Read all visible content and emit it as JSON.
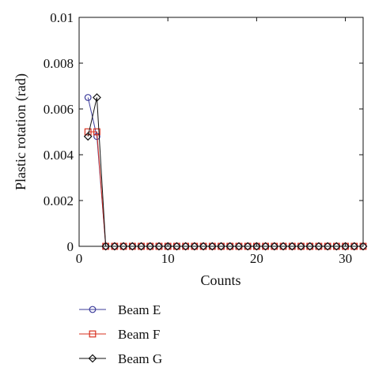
{
  "chart_data": {
    "type": "line",
    "xlabel": "Counts",
    "ylabel": "Plastic rotation (rad)",
    "xlim": [
      0,
      32
    ],
    "ylim": [
      0,
      0.01
    ],
    "xticks": [
      0,
      10,
      20,
      30
    ],
    "xtick_labels": [
      "0",
      "10",
      "20",
      "30"
    ],
    "yticks": [
      0,
      0.002,
      0.004,
      0.006,
      0.008,
      0.01
    ],
    "ytick_labels": [
      "0",
      "0.002",
      "0.004",
      "0.006",
      "0.008",
      "0.01"
    ],
    "grid": false,
    "legend_position": "bottom-left, below the plot",
    "x": [
      1,
      2,
      3,
      4,
      5,
      6,
      7,
      8,
      9,
      10,
      11,
      12,
      13,
      14,
      15,
      16,
      17,
      18,
      19,
      20,
      21,
      22,
      23,
      24,
      25,
      26,
      27,
      28,
      29,
      30,
      31,
      32
    ],
    "series": [
      {
        "name": "Beam E",
        "color": "#3b3b9a",
        "marker": "circle",
        "values": [
          0.0065,
          0.0048,
          0,
          0,
          0,
          0,
          0,
          0,
          0,
          0,
          0,
          0,
          0,
          0,
          0,
          0,
          0,
          0,
          0,
          0,
          0,
          0,
          0,
          0,
          0,
          0,
          0,
          0,
          0,
          0,
          0,
          0
        ]
      },
      {
        "name": "Beam F",
        "color": "#d7301f",
        "marker": "square",
        "values": [
          0.005,
          0.005,
          0,
          0,
          0,
          0,
          0,
          0,
          0,
          0,
          0,
          0,
          0,
          0,
          0,
          0,
          0,
          0,
          0,
          0,
          0,
          0,
          0,
          0,
          0,
          0,
          0,
          0,
          0,
          0,
          0,
          0
        ]
      },
      {
        "name": "Beam G",
        "color": "#111111",
        "marker": "diamond",
        "values": [
          0.0048,
          0.0065,
          0,
          0,
          0,
          0,
          0,
          0,
          0,
          0,
          0,
          0,
          0,
          0,
          0,
          0,
          0,
          0,
          0,
          0,
          0,
          0,
          0,
          0,
          0,
          0,
          0,
          0,
          0,
          0,
          0,
          0
        ]
      }
    ]
  }
}
